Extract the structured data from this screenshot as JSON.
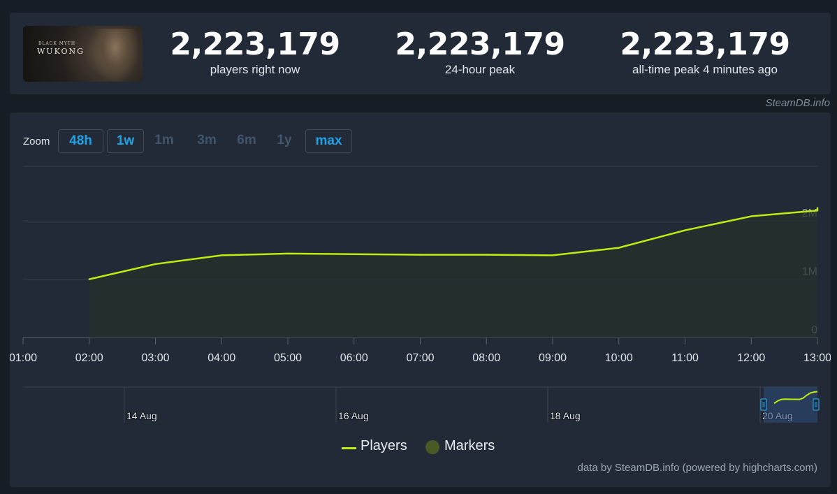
{
  "header": {
    "game_logo": {
      "subtitle": "BLACK MYTH",
      "title": "WUKONG"
    },
    "stats": [
      {
        "value": "2,223,179",
        "label": "players right now"
      },
      {
        "value": "2,223,179",
        "label": "24-hour peak"
      },
      {
        "value": "2,223,179",
        "label": "all-time peak 4 minutes ago"
      }
    ],
    "credit": "SteamDB.info"
  },
  "zoom": {
    "label": "Zoom",
    "buttons": [
      {
        "label": "48h",
        "active": true
      },
      {
        "label": "1w",
        "active": true
      },
      {
        "label": "1m",
        "active": false
      },
      {
        "label": "3m",
        "active": false
      },
      {
        "label": "6m",
        "active": false
      },
      {
        "label": "1y",
        "active": false
      },
      {
        "label": "max",
        "active": true
      }
    ]
  },
  "legend": {
    "players": "Players",
    "markers": "Markers"
  },
  "footer": {
    "credit": "data by SteamDB.info (powered by highcharts.com)"
  },
  "colors": {
    "line": "#beee11",
    "marker": "#4a5a24",
    "accent": "#1fa3e8"
  },
  "chart_data": {
    "type": "line",
    "series": [
      {
        "name": "Players",
        "x": [
          "02:00",
          "03:00",
          "04:00",
          "05:00",
          "06:00",
          "07:00",
          "08:00",
          "09:00",
          "10:00",
          "11:00",
          "12:00",
          "13:00",
          "13:15"
        ],
        "values": [
          1000000,
          1260000,
          1410000,
          1440000,
          1430000,
          1420000,
          1420000,
          1410000,
          1540000,
          1840000,
          2080000,
          2180000,
          2223179
        ]
      }
    ],
    "x_ticks": [
      "01:00",
      "02:00",
      "03:00",
      "04:00",
      "05:00",
      "06:00",
      "07:00",
      "08:00",
      "09:00",
      "10:00",
      "11:00",
      "12:00",
      "13:00"
    ],
    "y_ticks": [
      {
        "value": 0,
        "label": "0"
      },
      {
        "value": 1000000,
        "label": "1M"
      },
      {
        "value": 2000000,
        "label": "2M"
      }
    ],
    "ylim": [
      0,
      2950000
    ],
    "navigator": {
      "labels": [
        "14 Aug",
        "16 Aug",
        "18 Aug",
        "20 Aug"
      ]
    }
  }
}
